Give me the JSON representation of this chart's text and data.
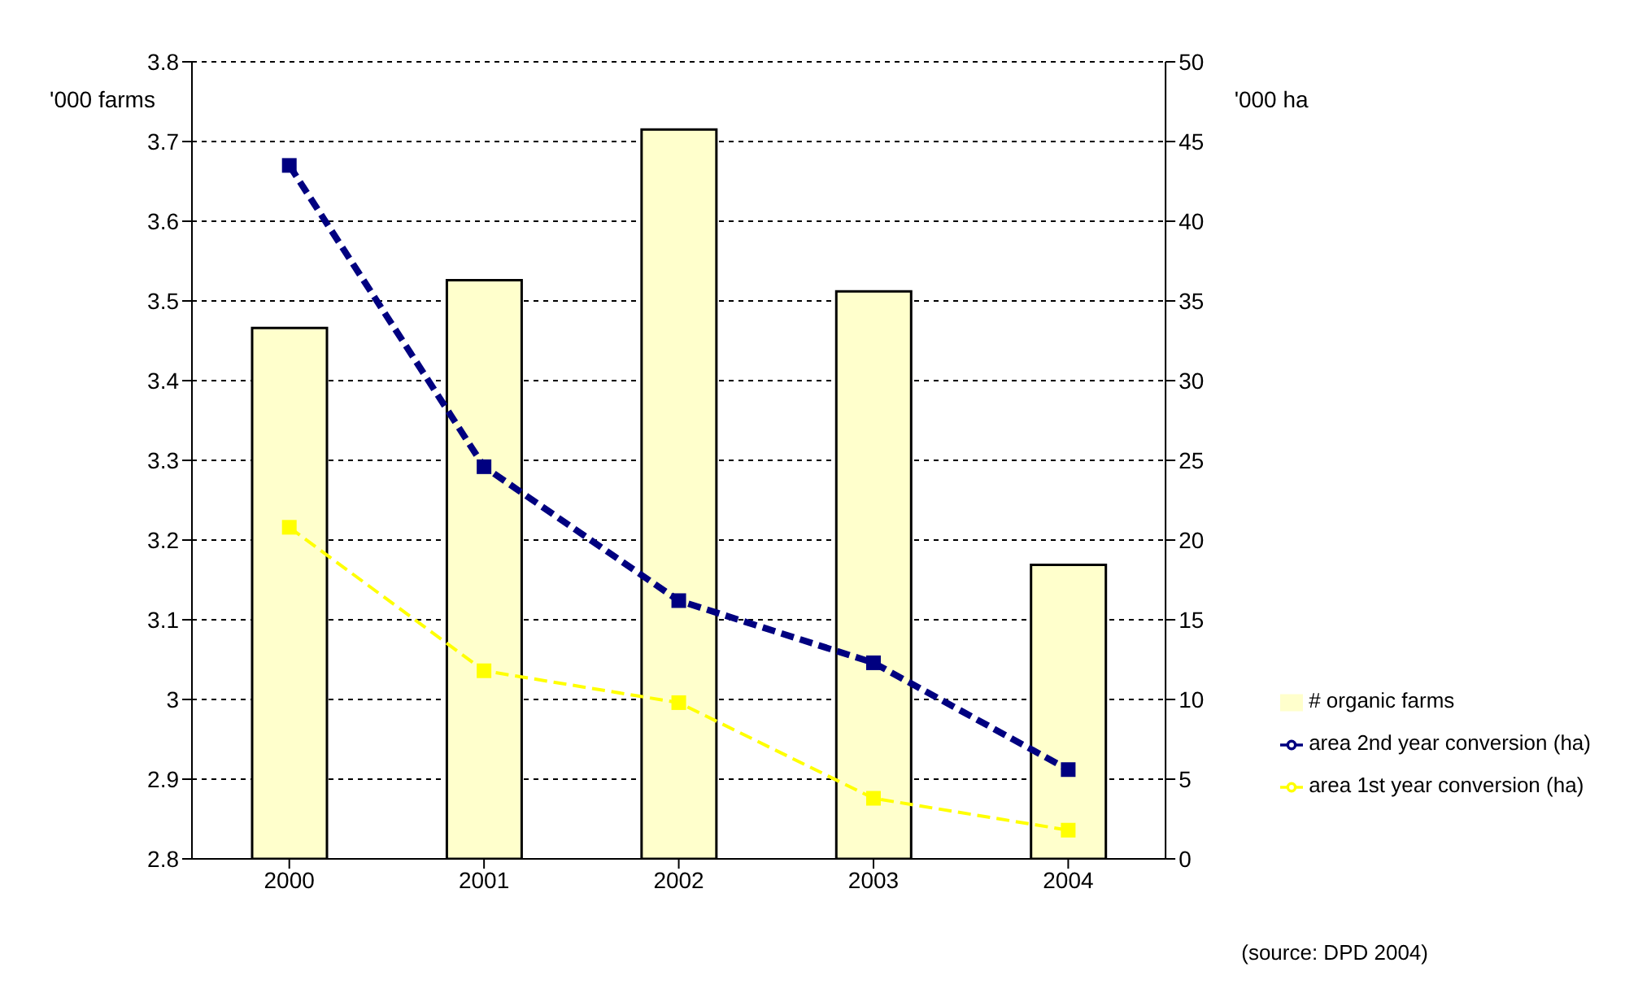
{
  "chart_data": {
    "type": "bar",
    "categories": [
      "2000",
      "2001",
      "2002",
      "2003",
      "2004"
    ],
    "series": [
      {
        "name": "# organic farms",
        "color": "#ffffcc",
        "values": [
          3.466,
          3.526,
          3.715,
          3.512,
          3.169
        ]
      },
      {
        "name": "area 2nd year conversion (ha)",
        "type": "line",
        "axis": "y2",
        "color": "#000080",
        "line_style": "dashed",
        "marker": "square",
        "values": [
          43.5,
          24.6,
          16.2,
          12.3,
          5.6
        ]
      },
      {
        "name": "area 1st year conversion (ha)",
        "type": "line",
        "axis": "y2",
        "color": "#ffff00",
        "line_style": "dashed",
        "marker": "square",
        "values": [
          20.8,
          11.8,
          9.8,
          3.8,
          1.8
        ]
      }
    ],
    "ylabel": "'000 farms",
    "y2label": "'000 ha",
    "ylim": [
      2.8,
      3.8
    ],
    "yticks": [
      2.8,
      2.9,
      3,
      3.1,
      3.2,
      3.3,
      3.4,
      3.5,
      3.6,
      3.7,
      3.8
    ],
    "y2lim": [
      0,
      50
    ],
    "y2ticks": [
      0,
      5,
      10,
      15,
      20,
      25,
      30,
      35,
      40,
      45,
      50
    ],
    "grid": "y",
    "legend": "right",
    "annotations": [
      "(source: DPD 2004)"
    ]
  }
}
